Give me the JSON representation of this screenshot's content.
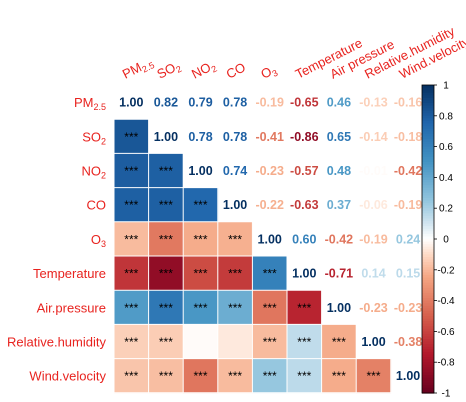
{
  "chart_data": {
    "type": "heatmap",
    "variables": [
      {
        "base": "PM",
        "sub": "2.5"
      },
      {
        "base": "SO",
        "sub": "2"
      },
      {
        "base": "NO",
        "sub": "2"
      },
      {
        "base": "CO",
        "sub": ""
      },
      {
        "base": "O",
        "sub": "3"
      },
      {
        "base": "Temperature",
        "sub": ""
      },
      {
        "base": "Air.pressure",
        "sub": ""
      },
      {
        "base": "Relative.humidity",
        "sub": ""
      },
      {
        "base": "Wind.velocity",
        "sub": ""
      }
    ],
    "top_labels": [
      {
        "base": "PM",
        "sub": "2.5"
      },
      {
        "base": "SO",
        "sub": "2"
      },
      {
        "base": "NO",
        "sub": "2"
      },
      {
        "base": "CO",
        "sub": ""
      },
      {
        "base": "O",
        "sub": "3"
      },
      {
        "base": "Temperature",
        "sub": ""
      },
      {
        "base": "Air pressure",
        "sub": ""
      },
      {
        "base": "Relative.humidity",
        "sub": ""
      },
      {
        "base": "Wind.velocity",
        "sub": ""
      }
    ],
    "matrix": [
      [
        1.0,
        0.82,
        0.79,
        0.78,
        -0.19,
        -0.65,
        0.46,
        -0.13,
        -0.16
      ],
      [
        0.82,
        1.0,
        0.78,
        0.78,
        -0.41,
        -0.86,
        0.65,
        -0.14,
        -0.18
      ],
      [
        0.79,
        0.78,
        1.0,
        0.74,
        -0.23,
        -0.57,
        0.48,
        -0.01,
        -0.42
      ],
      [
        0.78,
        0.78,
        0.74,
        1.0,
        -0.22,
        -0.63,
        0.37,
        -0.06,
        -0.19
      ],
      [
        -0.19,
        -0.41,
        -0.23,
        -0.22,
        1.0,
        0.6,
        -0.42,
        -0.19,
        0.24
      ],
      [
        -0.65,
        -0.86,
        -0.57,
        -0.63,
        0.6,
        1.0,
        -0.71,
        0.14,
        0.15
      ],
      [
        0.46,
        0.65,
        0.48,
        0.37,
        -0.42,
        -0.71,
        1.0,
        -0.23,
        -0.23
      ],
      [
        -0.13,
        -0.14,
        -0.01,
        -0.06,
        -0.19,
        0.14,
        -0.23,
        1.0,
        -0.38
      ],
      [
        -0.16,
        -0.18,
        -0.42,
        -0.19,
        0.24,
        0.15,
        -0.23,
        -0.38,
        1.0
      ]
    ],
    "significance_marker": "***",
    "significant_lower": [
      [
        1,
        0,
        true
      ],
      [
        2,
        0,
        true
      ],
      [
        2,
        1,
        true
      ],
      [
        3,
        0,
        true
      ],
      [
        3,
        1,
        true
      ],
      [
        3,
        2,
        true
      ],
      [
        4,
        0,
        true
      ],
      [
        4,
        1,
        true
      ],
      [
        4,
        2,
        true
      ],
      [
        4,
        3,
        true
      ],
      [
        5,
        0,
        true
      ],
      [
        5,
        1,
        true
      ],
      [
        5,
        2,
        true
      ],
      [
        5,
        3,
        true
      ],
      [
        5,
        4,
        true
      ],
      [
        6,
        0,
        true
      ],
      [
        6,
        1,
        true
      ],
      [
        6,
        2,
        true
      ],
      [
        6,
        3,
        true
      ],
      [
        6,
        4,
        true
      ],
      [
        6,
        5,
        true
      ],
      [
        7,
        0,
        true
      ],
      [
        7,
        1,
        true
      ],
      [
        7,
        2,
        false
      ],
      [
        7,
        3,
        false
      ],
      [
        7,
        4,
        true
      ],
      [
        7,
        5,
        true
      ],
      [
        7,
        6,
        true
      ],
      [
        8,
        0,
        true
      ],
      [
        8,
        1,
        true
      ],
      [
        8,
        2,
        true
      ],
      [
        8,
        3,
        true
      ],
      [
        8,
        4,
        true
      ],
      [
        8,
        5,
        true
      ],
      [
        8,
        6,
        true
      ],
      [
        8,
        7,
        true
      ]
    ],
    "colorbar": {
      "range": [
        -1,
        1
      ],
      "ticks": [
        "1",
        "0.8",
        "0.6",
        "0.4",
        "0.2",
        "0",
        "-0.2",
        "-0.4",
        "-0.6",
        "-0.8",
        "-1"
      ]
    }
  }
}
